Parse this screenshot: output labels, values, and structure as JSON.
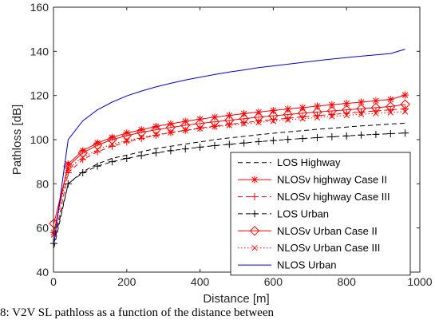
{
  "caption": "8: V2V SL pathloss as a function of the distance between",
  "chart_data": {
    "type": "line",
    "title": "",
    "xlabel": "Distance [m]",
    "ylabel": "Pathloss [dB]",
    "xlim": [
      0,
      1000
    ],
    "ylim": [
      40,
      160
    ],
    "xticks": [
      0,
      200,
      400,
      600,
      800,
      1000
    ],
    "yticks": [
      40,
      60,
      80,
      100,
      120,
      140,
      160
    ],
    "grid": false,
    "legend_position": "bottom-right",
    "x": [
      1,
      40,
      80,
      120,
      160,
      200,
      240,
      280,
      320,
      360,
      400,
      440,
      480,
      520,
      560,
      600,
      640,
      680,
      720,
      760,
      800,
      840,
      880,
      920,
      960
    ],
    "series": [
      {
        "name": "LOS Highway",
        "color": "#000000",
        "line": "dashed",
        "marker": "none",
        "values": [
          51,
          80,
          85.5,
          89,
          91.5,
          93,
          94.5,
          96,
          97,
          98,
          99,
          100,
          100.8,
          101.5,
          102.2,
          102.9,
          103.5,
          104.1,
          104.7,
          105.2,
          105.7,
          106.2,
          106.6,
          107.1,
          107.5
        ]
      },
      {
        "name": "NLOSv highway Case II",
        "color": "#ff0000",
        "line": "solid",
        "marker": "asterisk",
        "values": [
          58,
          89,
          95,
          98.5,
          101,
          103,
          104.5,
          106,
          107.2,
          108.3,
          109.3,
          110.2,
          111,
          111.8,
          112.5,
          113.2,
          113.9,
          114.5,
          115.2,
          115.8,
          116.4,
          117,
          117.6,
          118.2,
          120.2
        ]
      },
      {
        "name": "NLOSv highway Case III",
        "color": "#ff0000",
        "line": "dashed",
        "marker": "plus",
        "values": [
          53,
          85,
          91,
          94.5,
          97,
          99,
          100.5,
          102,
          103.2,
          104.2,
          105.2,
          106.1,
          106.9,
          107.7,
          108.4,
          109.1,
          109.7,
          110.3,
          110.9,
          111.4,
          112,
          112.5,
          113,
          113.5,
          114
        ]
      },
      {
        "name": "LOS Urban",
        "color": "#000000",
        "line": "dashed",
        "marker": "plus",
        "values": [
          53,
          80,
          85,
          88,
          90,
          91.5,
          92.8,
          94,
          95,
          95.8,
          96.6,
          97.3,
          97.9,
          98.5,
          99.1,
          99.6,
          100.1,
          100.5,
          100.9,
          101.3,
          101.7,
          102.1,
          102.4,
          102.7,
          103
        ]
      },
      {
        "name": "NLOSv Urban Case II",
        "color": "#ff0000",
        "line": "solid",
        "marker": "diamond",
        "values": [
          62,
          88,
          94,
          97.5,
          100,
          101.8,
          103.3,
          104.5,
          105.5,
          106.5,
          107.3,
          108.1,
          108.8,
          109.5,
          110.2,
          110.8,
          111.4,
          112,
          112.5,
          113,
          113.5,
          114,
          114.5,
          115,
          116
        ]
      },
      {
        "name": "NLOSv Urban Case III",
        "color": "#ff0000",
        "line": "dotted",
        "marker": "x",
        "values": [
          57,
          87,
          92,
          95.5,
          98,
          99.5,
          101,
          102.2,
          103.2,
          104.2,
          105,
          105.8,
          106.5,
          107.2,
          107.8,
          108.4,
          109,
          109.5,
          110,
          110.5,
          111,
          111.5,
          111.9,
          112.3,
          112.7
        ]
      },
      {
        "name": "NLOS Urban",
        "color": "#0000cc",
        "line": "solid",
        "marker": "none",
        "values": [
          53,
          100,
          108.5,
          113.5,
          117,
          119.8,
          122,
          123.9,
          125.5,
          127,
          128.3,
          129.5,
          130.6,
          131.6,
          132.6,
          133.4,
          134.2,
          135,
          135.8,
          136.5,
          137.2,
          137.8,
          138.4,
          139,
          141
        ]
      }
    ]
  }
}
